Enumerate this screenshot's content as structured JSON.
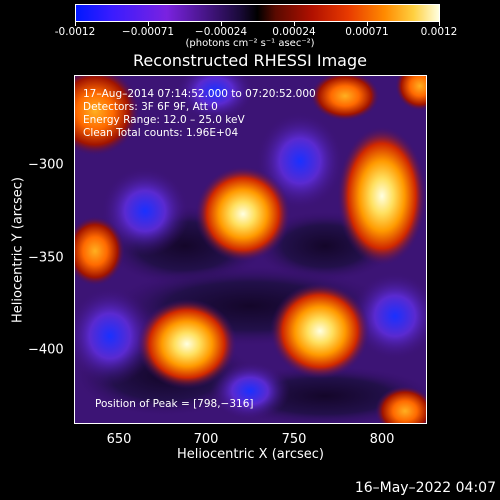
{
  "colorbar": {
    "ticks": [
      "-0.0012",
      "−0.00071",
      "−0.00024",
      "0.00024",
      "0.00071",
      "0.0012"
    ],
    "units": "(photons cm⁻² s⁻¹ asec⁻²)"
  },
  "title": "Reconstructed RHESSI Image",
  "info": {
    "time": "17–Aug–2014 07:14:52.000 to 07:20:52.000",
    "detectors": "Detectors: 3F 6F 9F, Att 0",
    "energy": "Energy Range: 12.0 – 25.0 keV",
    "clean": "Clean    Total counts: 1.96E+04",
    "peak": "Position of Peak = [798,−316]"
  },
  "axes": {
    "xlabel": "Heliocentric X (arcsec)",
    "ylabel": "Heliocentric Y (arcsec)",
    "xticks": [
      "650",
      "700",
      "750",
      "800"
    ],
    "yticks": [
      "−300",
      "−350",
      "−400"
    ]
  },
  "footer": {
    "date": "16–May–2022 04:07"
  }
}
